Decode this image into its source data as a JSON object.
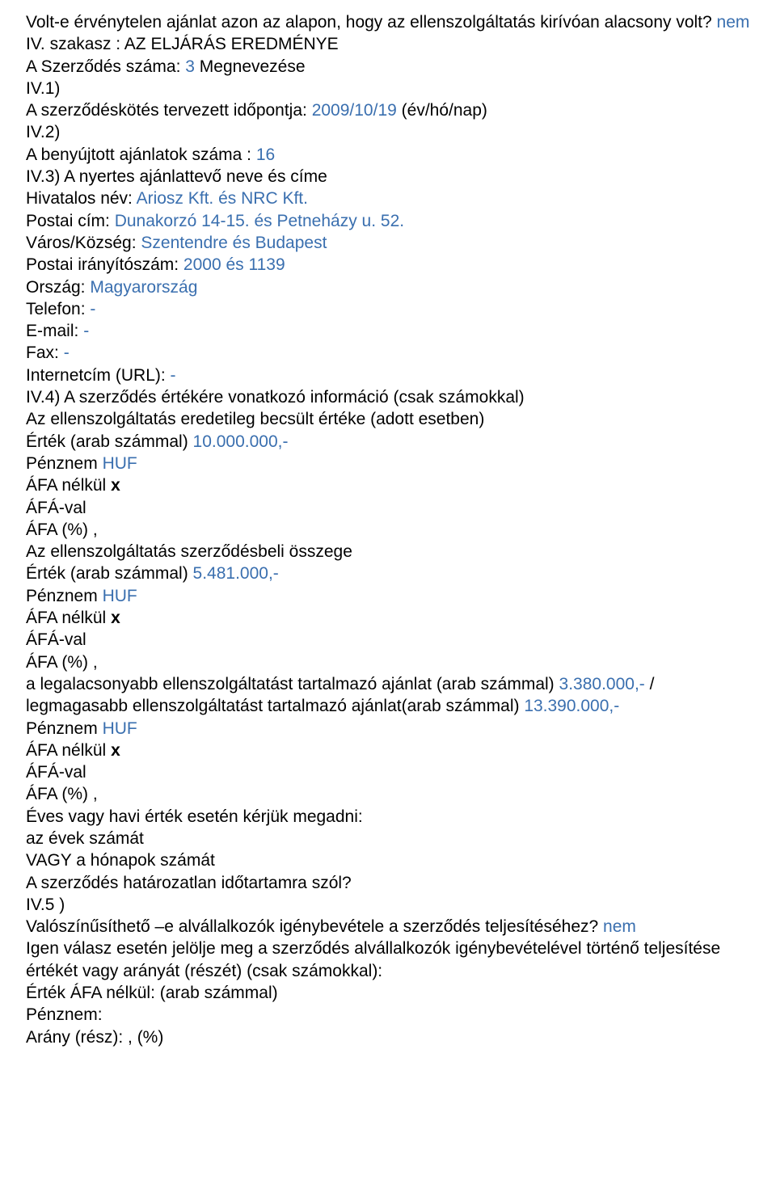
{
  "lines": [
    {
      "parts": [
        {
          "text": "Volt-e érvénytelen ajánlat azon az alapon, hogy az ellenszolgáltatás kirívóan alacsony volt? ",
          "cls": ""
        },
        {
          "text": "nem",
          "cls": "blue"
        }
      ]
    },
    {
      "parts": [
        {
          "text": "IV. szakasz : AZ ELJÁRÁS EREDMÉNYE",
          "cls": ""
        }
      ]
    },
    {
      "parts": [
        {
          "text": "A Szerződés száma: ",
          "cls": ""
        },
        {
          "text": "3",
          "cls": "blue"
        },
        {
          "text": " Megnevezése",
          "cls": ""
        }
      ]
    },
    {
      "parts": [
        {
          "text": "IV.1)",
          "cls": ""
        }
      ]
    },
    {
      "parts": [
        {
          "text": "A szerződéskötés tervezett időpontja: ",
          "cls": ""
        },
        {
          "text": "2009/10/19",
          "cls": "blue"
        },
        {
          "text": " (év/hó/nap)",
          "cls": ""
        }
      ]
    },
    {
      "parts": [
        {
          "text": "IV.2)",
          "cls": ""
        }
      ]
    },
    {
      "parts": [
        {
          "text": "A benyújtott ajánlatok száma : ",
          "cls": ""
        },
        {
          "text": "16",
          "cls": "blue"
        }
      ]
    },
    {
      "parts": [
        {
          "text": "IV.3) A nyertes ajánlattevő neve és címe",
          "cls": ""
        }
      ]
    },
    {
      "parts": [
        {
          "text": "Hivatalos név: ",
          "cls": ""
        },
        {
          "text": "Ariosz Kft. és NRC Kft.",
          "cls": "blue"
        }
      ]
    },
    {
      "parts": [
        {
          "text": "Postai cím: ",
          "cls": ""
        },
        {
          "text": "Dunakorzó 14-15. és Petneházy u. 52.",
          "cls": "blue"
        }
      ]
    },
    {
      "parts": [
        {
          "text": "Város/Község: ",
          "cls": ""
        },
        {
          "text": "Szentendre és Budapest",
          "cls": "blue"
        }
      ]
    },
    {
      "parts": [
        {
          "text": "Postai irányítószám: ",
          "cls": ""
        },
        {
          "text": "2000 és 1139",
          "cls": "blue"
        }
      ]
    },
    {
      "parts": [
        {
          "text": "Ország: ",
          "cls": ""
        },
        {
          "text": "Magyarország",
          "cls": "blue"
        }
      ]
    },
    {
      "parts": [
        {
          "text": "Telefon: ",
          "cls": ""
        },
        {
          "text": "-",
          "cls": "blue"
        }
      ]
    },
    {
      "parts": [
        {
          "text": "E-mail: ",
          "cls": ""
        },
        {
          "text": "-",
          "cls": "blue"
        }
      ]
    },
    {
      "parts": [
        {
          "text": "Fax: ",
          "cls": ""
        },
        {
          "text": "-",
          "cls": "blue"
        }
      ]
    },
    {
      "parts": [
        {
          "text": "Internetcím (URL): ",
          "cls": ""
        },
        {
          "text": "-",
          "cls": "blue"
        }
      ]
    },
    {
      "parts": [
        {
          "text": "IV.4) A szerződés értékére vonatkozó információ (csak számokkal)",
          "cls": ""
        }
      ]
    },
    {
      "parts": [
        {
          "text": "Az ellenszolgáltatás eredetileg becsült értéke (adott esetben)",
          "cls": ""
        }
      ]
    },
    {
      "parts": [
        {
          "text": "Érték (arab számmal) ",
          "cls": ""
        },
        {
          "text": "10.000.000,-",
          "cls": "blue"
        }
      ]
    },
    {
      "parts": [
        {
          "text": "Pénznem ",
          "cls": ""
        },
        {
          "text": "HUF",
          "cls": "blue"
        }
      ]
    },
    {
      "parts": [
        {
          "text": "ÁFA nélkül ",
          "cls": ""
        },
        {
          "text": "x",
          "cls": "bold"
        }
      ]
    },
    {
      "parts": [
        {
          "text": "ÁFÁ-val",
          "cls": ""
        }
      ]
    },
    {
      "parts": [
        {
          "text": "ÁFA (%) ,",
          "cls": ""
        }
      ]
    },
    {
      "parts": [
        {
          "text": "Az ellenszolgáltatás szerződésbeli összege",
          "cls": ""
        }
      ]
    },
    {
      "parts": [
        {
          "text": "Érték (arab számmal) ",
          "cls": ""
        },
        {
          "text": "5.481.000,-",
          "cls": "blue"
        }
      ]
    },
    {
      "parts": [
        {
          "text": "Pénznem ",
          "cls": ""
        },
        {
          "text": "HUF",
          "cls": "blue"
        }
      ]
    },
    {
      "parts": [
        {
          "text": "ÁFA nélkül ",
          "cls": ""
        },
        {
          "text": "x",
          "cls": "bold"
        }
      ]
    },
    {
      "parts": [
        {
          "text": "ÁFÁ-val",
          "cls": ""
        }
      ]
    },
    {
      "parts": [
        {
          "text": "ÁFA (%) ,",
          "cls": ""
        }
      ]
    },
    {
      "parts": [
        {
          "text": "a legalacsonyabb ellenszolgáltatást tartalmazó ajánlat (arab számmal) ",
          "cls": ""
        },
        {
          "text": "3.380.000,-",
          "cls": "blue"
        },
        {
          "text": " / legmagasabb ellenszolgáltatást tartalmazó ajánlat(arab számmal) ",
          "cls": ""
        },
        {
          "text": "13.390.000,-",
          "cls": "blue"
        }
      ]
    },
    {
      "parts": [
        {
          "text": "Pénznem ",
          "cls": ""
        },
        {
          "text": "HUF",
          "cls": "blue"
        }
      ]
    },
    {
      "parts": [
        {
          "text": "ÁFA nélkül ",
          "cls": ""
        },
        {
          "text": "x",
          "cls": "bold"
        }
      ]
    },
    {
      "parts": [
        {
          "text": "ÁFÁ-val",
          "cls": ""
        }
      ]
    },
    {
      "parts": [
        {
          "text": "ÁFA (%) ,",
          "cls": ""
        }
      ]
    },
    {
      "parts": [
        {
          "text": "Éves vagy havi érték esetén kérjük megadni:",
          "cls": ""
        }
      ]
    },
    {
      "parts": [
        {
          "text": "az évek számát",
          "cls": ""
        }
      ]
    },
    {
      "parts": [
        {
          "text": "VAGY a hónapok számát",
          "cls": ""
        }
      ]
    },
    {
      "parts": [
        {
          "text": "A szerződés határozatlan időtartamra szól?",
          "cls": ""
        }
      ]
    },
    {
      "parts": [
        {
          "text": "IV.5 )",
          "cls": ""
        }
      ]
    },
    {
      "parts": [
        {
          "text": "Valószínűsíthető –e alvállalkozók igénybevétele a szerződés teljesítéséhez? ",
          "cls": ""
        },
        {
          "text": "nem",
          "cls": "blue"
        }
      ]
    },
    {
      "parts": [
        {
          "text": "Igen válasz esetén jelölje meg a szerződés alvállalkozók igénybevételével történő teljesítése értékét vagy arányát (részét) (csak számokkal):",
          "cls": ""
        }
      ]
    },
    {
      "parts": [
        {
          "text": "Érték ÁFA nélkül: (arab számmal)",
          "cls": ""
        }
      ]
    },
    {
      "parts": [
        {
          "text": "Pénznem:",
          "cls": ""
        }
      ]
    },
    {
      "parts": [
        {
          "text": "Arány (rész): , (%)",
          "cls": ""
        }
      ]
    }
  ]
}
